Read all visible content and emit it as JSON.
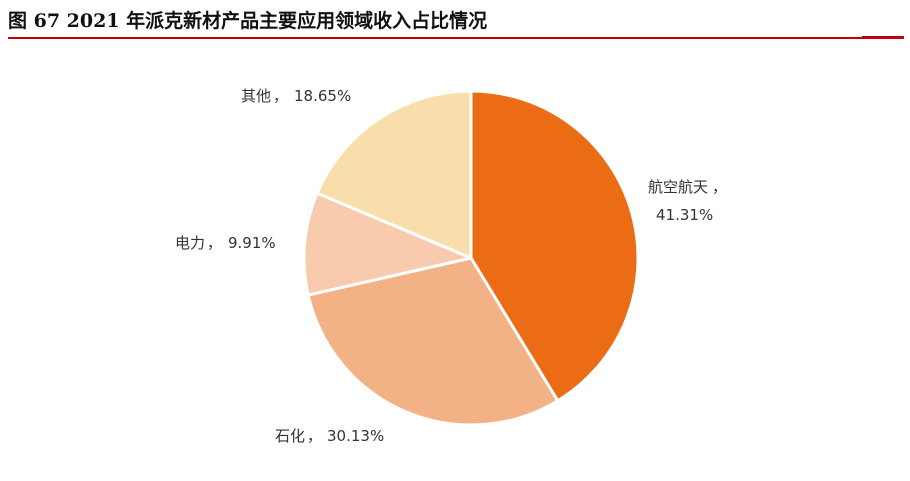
{
  "figure": {
    "title": "图 67 2021 年派克新材产品主要应用领域收入占比情况",
    "rule_color": "#c0000b"
  },
  "chart_data": {
    "type": "pie",
    "title": "",
    "start_angle_deg": 0,
    "direction": "clockwise",
    "legend": "none",
    "slices": [
      {
        "category": "航空航天",
        "value": 41.31,
        "label": "41.31%",
        "color": "#ec6c16"
      },
      {
        "category": "石化",
        "value": 30.13,
        "label": "30.13%",
        "color": "#f3b285"
      },
      {
        "category": "电力",
        "value": 9.91,
        "label": "9.91%",
        "color": "#f8cbae"
      },
      {
        "category": "其他",
        "value": 18.65,
        "label": "18.65%",
        "color": "#f7deaa"
      }
    ]
  }
}
